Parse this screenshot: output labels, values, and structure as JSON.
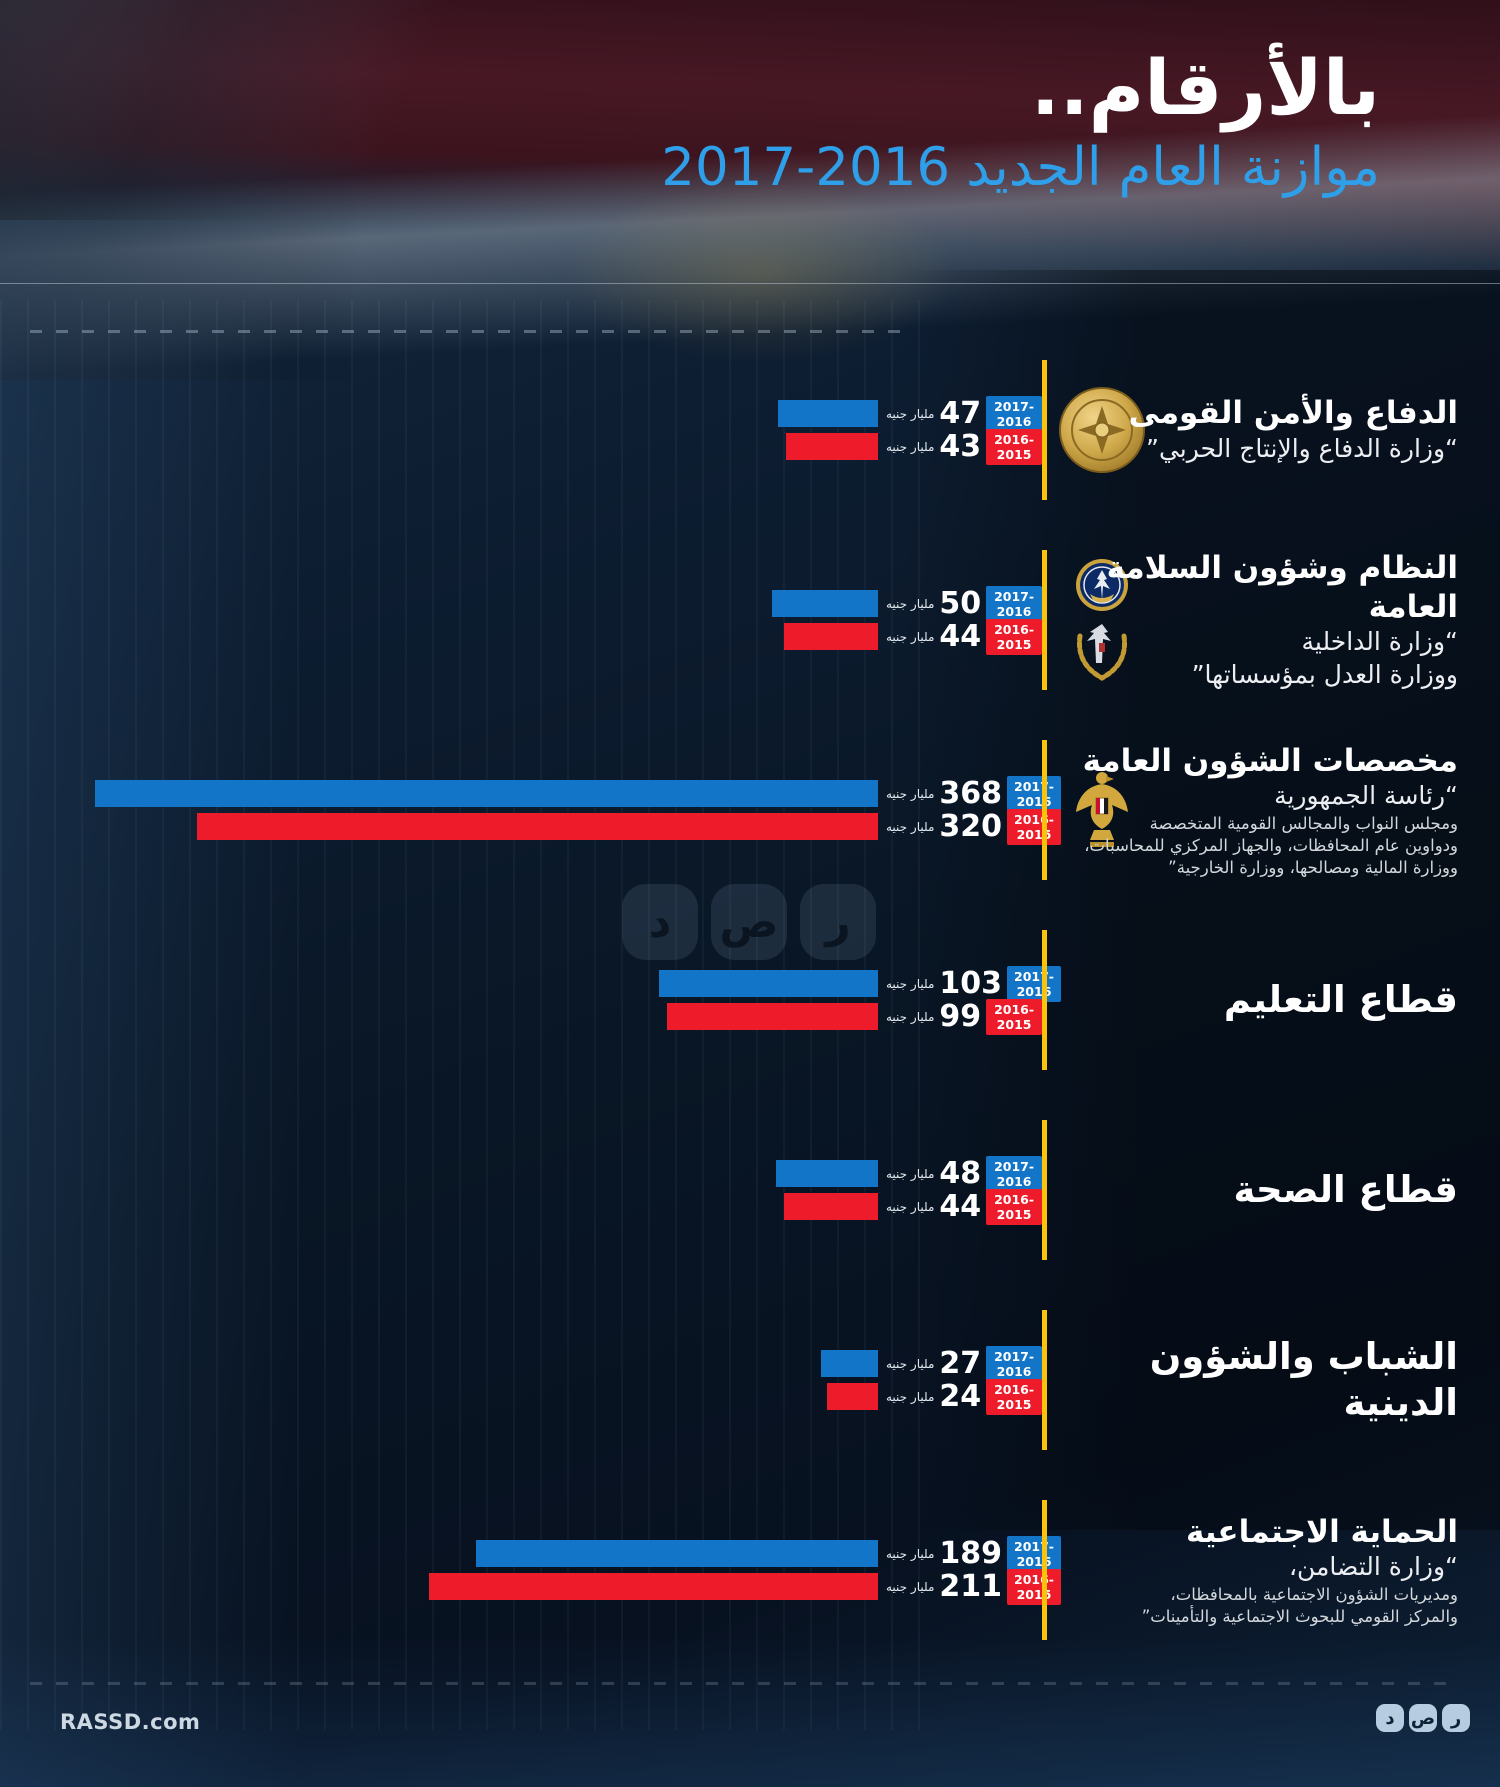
{
  "page": {
    "title": "بالأرقام..",
    "subtitle_text": "موازنة العام الجديد",
    "subtitle_years": "2017-2016",
    "footer_site": "RASSD.com",
    "brand_letters": [
      "ر",
      "ص",
      "د"
    ]
  },
  "legend": {
    "series1_label": "2017-2016",
    "series2_label": "2016-2015",
    "unit": "مليار جنيه"
  },
  "colors": {
    "series1": "#1375c8",
    "series2": "#ee1b2a",
    "accent_yellow": "#fcc30b",
    "subtitle_blue": "#2e9fe8"
  },
  "sectors": [
    {
      "title": "الدفاع والأمن القومى",
      "subtitle_lines": [
        "“وزارة الدفاع والإنتاج الحربي”"
      ],
      "small_lines": [],
      "icons": [
        "military-medal-icon"
      ],
      "value_2017_2016": 47,
      "value_2016_2015": 43
    },
    {
      "title": "النظام وشؤون السلامة العامة",
      "subtitle_lines": [
        "“وزارة الداخلية",
        "ووزارة العدل بمؤسساتها”"
      ],
      "small_lines": [],
      "icons": [
        "police-emblem-icon",
        "justice-ministry-icon"
      ],
      "value_2017_2016": 50,
      "value_2016_2015": 44
    },
    {
      "title": "مخصصات الشؤون العامة",
      "subtitle_lines": [
        "“رئاسة الجمهورية"
      ],
      "small_lines": [
        "ومجلس النواب والمجالس القومية المتخصصة",
        "ودواوين عام المحافظات، والجهاز المركزي للمحاسبات،",
        "ووزارة المالية ومصالحها، ووزارة الخارجية”"
      ],
      "icons": [
        "egypt-eagle-icon"
      ],
      "value_2017_2016": 368,
      "value_2016_2015": 320
    },
    {
      "title": "قطاع التعليم",
      "subtitle_lines": [],
      "small_lines": [],
      "icons": [],
      "value_2017_2016": 103,
      "value_2016_2015": 99
    },
    {
      "title": "قطاع الصحة",
      "subtitle_lines": [],
      "small_lines": [],
      "icons": [],
      "value_2017_2016": 48,
      "value_2016_2015": 44
    },
    {
      "title": "الشباب والشؤون الدينية",
      "subtitle_lines": [],
      "small_lines": [],
      "icons": [],
      "value_2017_2016": 27,
      "value_2016_2015": 24
    },
    {
      "title": "الحماية الاجتماعية",
      "subtitle_lines": [
        "“وزارة التضامن،"
      ],
      "small_lines": [
        "ومديريات الشؤون الاجتماعية بالمحافظات،",
        "والمركز القومي للبحوث الاجتماعية والتأمينات”"
      ],
      "icons": [],
      "value_2017_2016": 189,
      "value_2016_2015": 211
    }
  ],
  "chart_data": {
    "type": "bar",
    "orientation": "horizontal",
    "title": "بالأرقام.. موازنة العام الجديد 2016-2017",
    "unit": "مليار جنيه",
    "categories": [
      "الدفاع والأمن القومى",
      "النظام وشؤون السلامة العامة",
      "مخصصات الشؤون العامة",
      "قطاع التعليم",
      "قطاع الصحة",
      "الشباب والشؤون الدينية",
      "الحماية الاجتماعية"
    ],
    "series": [
      {
        "name": "2017-2016",
        "color": "#1375c8",
        "values": [
          47,
          50,
          368,
          103,
          48,
          27,
          189
        ]
      },
      {
        "name": "2016-2015",
        "color": "#ee1b2a",
        "values": [
          43,
          44,
          320,
          99,
          44,
          24,
          211
        ]
      }
    ],
    "value_range": [
      0,
      368
    ],
    "legend_position": "inline-badges",
    "grid": false
  }
}
